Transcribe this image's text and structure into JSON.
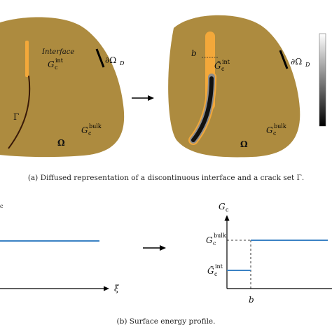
{
  "top_panel": {
    "left_domain": {
      "interface_label": "Interface",
      "g_int_main": "G",
      "g_int_sub": "c",
      "g_int_sup": "int",
      "gamma_label": "Γ",
      "omega_label": "Ω",
      "g_bulk_main": "G",
      "g_bulk_sub": "c",
      "g_bulk_sup": "bulk"
    },
    "right_domain": {
      "b_label": "b",
      "g_tilde_main": "G̃",
      "g_tilde_sub": "c",
      "g_tilde_sup": "int",
      "omega_label": "Ω",
      "g_bulk_main": "G",
      "g_bulk_sub": "c",
      "g_bulk_sup": "bulk",
      "boundary_label": "∂Ω"
    },
    "left_boundary_label": "∂Ω",
    "boundary_sub": "D",
    "caption": "(a) Diffused representation of a discontinuous interface and a crack set Γ."
  },
  "bottom_panel": {
    "left_plot": {
      "y_label_fragment": "c",
      "x_label": "ξ"
    },
    "right_plot": {
      "y_label_main": "G",
      "y_label_sub": "c",
      "tick_bulk_main": "G",
      "tick_bulk_sub": "c",
      "tick_bulk_sup": "bulk",
      "tick_int_main": "G̃",
      "tick_int_sub": "c",
      "tick_int_sup": "int",
      "x_tick": "b"
    },
    "caption": "(b) Surface energy profile."
  },
  "colors": {
    "domain_fill": "#ad8b3f",
    "interface_orange": "#f3a83a",
    "crack_dark": "#1a1a1a",
    "profile_blue": "#3b82c4",
    "boundary_black": "#000000"
  }
}
